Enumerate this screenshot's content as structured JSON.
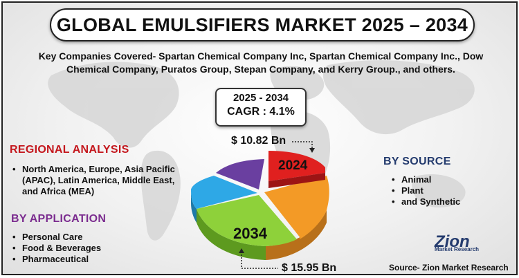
{
  "title": "GLOBAL EMULSIFIERS MARKET  2025 – 2034",
  "companies": "Key Companies Covered- Spartan Chemical Company Inc, Spartan Chemical Company Inc., Dow Chemical Company, Puratos Group, Stepan Company, and Kerry Group., and others.",
  "cagr_box": {
    "period": "2025 - 2034",
    "cagr": "CAGR : 4.1%"
  },
  "value_2024": "$ 10.82 Bn",
  "value_2034": "$ 15.95 Bn",
  "year_2024": "2024",
  "year_2034": "2034",
  "regional": {
    "title": "REGIONAL ANALYSIS",
    "items": [
      "North America, Europe, Asia Pacific (APAC), Latin America, Middle East, and Africa (MEA)"
    ]
  },
  "application": {
    "title": "BY APPLICATION",
    "items": [
      "Personal Care",
      "Food & Beverages",
      "Pharmaceutical"
    ]
  },
  "source_segment": {
    "title": "BY SOURCE",
    "items": [
      "Animal",
      "Plant",
      "and Synthetic"
    ]
  },
  "logo": {
    "name": "Zion",
    "sub": "Market Research"
  },
  "source_note": "Source- Zion Market Research",
  "colors": {
    "regional_title": "#c4161c",
    "application_title": "#7b2c8f",
    "source_title": "#243b6e",
    "pie_red": "#e0201f",
    "pie_orange": "#f39a26",
    "pie_green": "#8ed13a",
    "pie_blue": "#2ea8e6",
    "pie_purple": "#6a3fa0"
  }
}
